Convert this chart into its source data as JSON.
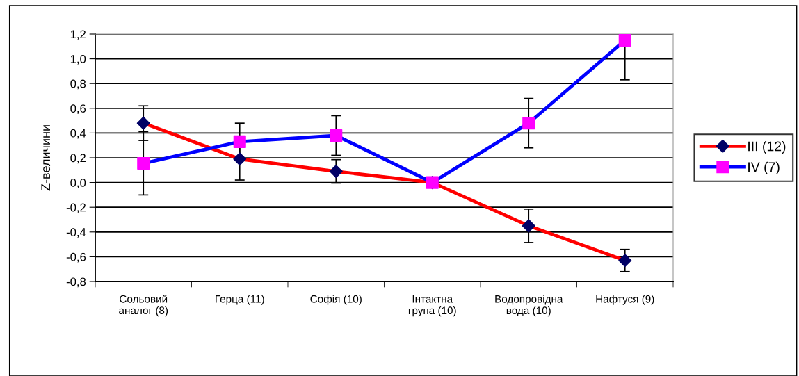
{
  "chart_data": {
    "type": "line",
    "ylabel": "Z-величини",
    "categories": [
      "Сольовий\nаналог (8)",
      "Герца (11)",
      "Софія (10)",
      "Інтактна\nгрупа (10)",
      "Водопровідна\nвода (10)",
      "Нафтуся (9)"
    ],
    "series": [
      {
        "name": "III (12)",
        "color": "#ff0000",
        "marker": "diamond",
        "colors": [
          "#000066",
          "#000066",
          "#000066",
          "#000066",
          "#000066",
          "#000066"
        ],
        "values": [
          0.48,
          0.19,
          0.09,
          0.0,
          -0.35,
          -0.63
        ],
        "errors": [
          0.14,
          0.17,
          0.095,
          null,
          0.135,
          0.09
        ]
      },
      {
        "name": "IV (7)",
        "color": "#0000ff",
        "marker": "square",
        "colors": [
          "#ff00ff",
          "#ff00ff",
          "#ff00ff",
          "#ff00ff",
          "#ff00ff",
          "#ff00ff"
        ],
        "values": [
          0.155,
          0.33,
          0.38,
          0.0,
          0.48,
          1.15
        ],
        "errors": [
          0.255,
          0.15,
          0.16,
          null,
          0.2,
          [
            0.83,
            1.2
          ]
        ]
      }
    ],
    "ylim": [
      -0.8,
      1.2
    ],
    "yticks": [
      {
        "value": -0.8,
        "label": "-0,8"
      },
      {
        "value": -0.6,
        "label": "-0,6"
      },
      {
        "value": -0.4,
        "label": "-0,4"
      },
      {
        "value": -0.2,
        "label": "-0,2"
      },
      {
        "value": 0.0,
        "label": "0,0"
      },
      {
        "value": 0.2,
        "label": "0,2"
      },
      {
        "value": 0.4,
        "label": "0,4"
      },
      {
        "value": 0.6,
        "label": "0,6"
      },
      {
        "value": 0.8,
        "label": "0,8"
      },
      {
        "value": 1.0,
        "label": "1,0"
      },
      {
        "value": 1.2,
        "label": "1,2"
      }
    ],
    "grid": "y",
    "legend": "right",
    "line_style": "solid"
  }
}
